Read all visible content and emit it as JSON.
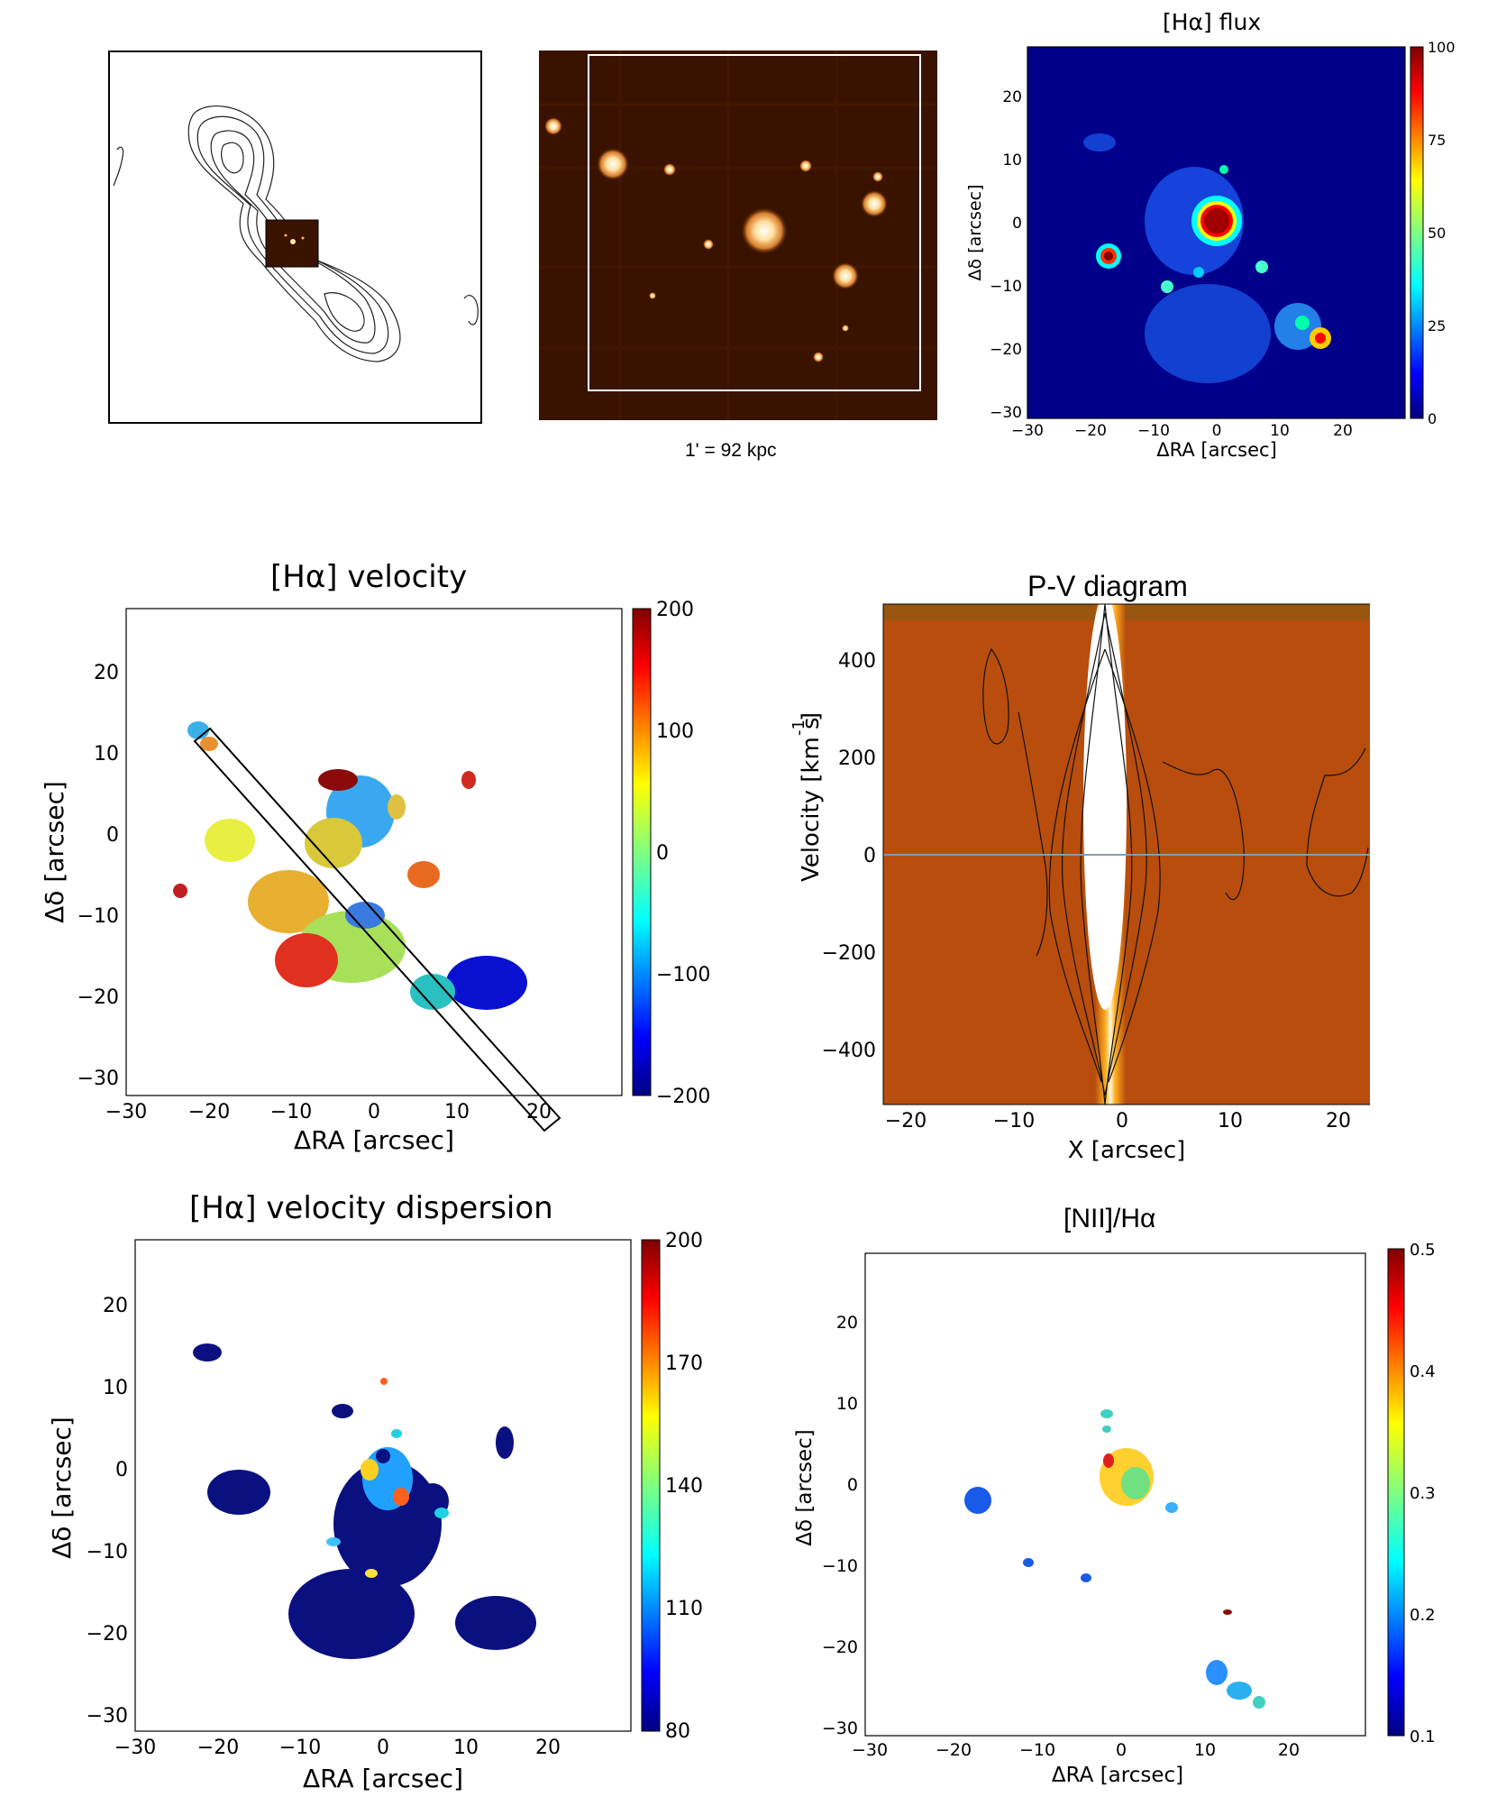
{
  "panels": {
    "radio_contours": {},
    "optical_image": {
      "scale_caption": "1' = 92 kpc"
    },
    "ha_flux": {
      "title": "[Hα] flux",
      "xlabel": "ΔRA [arcsec]",
      "ylabel": "Δδ [arcsec]",
      "xticks": [
        "−30",
        "−20",
        "−10",
        "0",
        "10",
        "20"
      ],
      "yticks": [
        "20",
        "10",
        "0",
        "−10",
        "−20",
        "−30"
      ],
      "colorbar_ticks": [
        "100",
        "75",
        "50",
        "25",
        "0"
      ]
    },
    "ha_velocity": {
      "title": "[Hα] velocity",
      "xlabel": "ΔRA [arcsec]",
      "ylabel": "Δδ [arcsec]",
      "xticks": [
        "−30",
        "−20",
        "−10",
        "0",
        "10",
        "20"
      ],
      "yticks": [
        "20",
        "10",
        "0",
        "−10",
        "−20",
        "−30"
      ],
      "colorbar_ticks": [
        "200",
        "100",
        "0",
        "−100",
        "−200"
      ]
    },
    "pv_diagram": {
      "title": "P-V diagram",
      "xlabel": "X [arcsec]",
      "ylabel": "Velocity [km s",
      "ylabel_sup": "-1",
      "ylabel_end": "]",
      "xticks": [
        "−20",
        "−10",
        "0",
        "10",
        "20"
      ],
      "yticks": [
        "400",
        "200",
        "0",
        "−200",
        "−400"
      ]
    },
    "ha_dispersion": {
      "title": "[Hα] velocity dispersion",
      "xlabel": "ΔRA [arcsec]",
      "ylabel": "Δδ [arcsec]",
      "xticks": [
        "−30",
        "−20",
        "−10",
        "0",
        "10",
        "20"
      ],
      "yticks": [
        "20",
        "10",
        "0",
        "−10",
        "−20",
        "−30"
      ],
      "colorbar_ticks": [
        "200",
        "170",
        "140",
        "110",
        "80"
      ]
    },
    "nii_ha": {
      "title": "[NII]/Hα",
      "xlabel": "ΔRA [arcsec]",
      "ylabel": "Δδ [arcsec]",
      "xticks": [
        "−30",
        "−20",
        "−10",
        "0",
        "10",
        "20"
      ],
      "yticks": [
        "20",
        "10",
        "0",
        "−10",
        "−20",
        "−30"
      ],
      "colorbar_ticks": [
        "0.5",
        "0.4",
        "0.3",
        "0.2",
        "0.1"
      ]
    }
  },
  "colors": {
    "jet_top": "#7f0000",
    "jet_mid": "#7fff7f",
    "jet_bottom": "#00007f",
    "map_background": "#00008b",
    "optical_background": "#3a1300",
    "pv_background": "#b84d0d"
  }
}
